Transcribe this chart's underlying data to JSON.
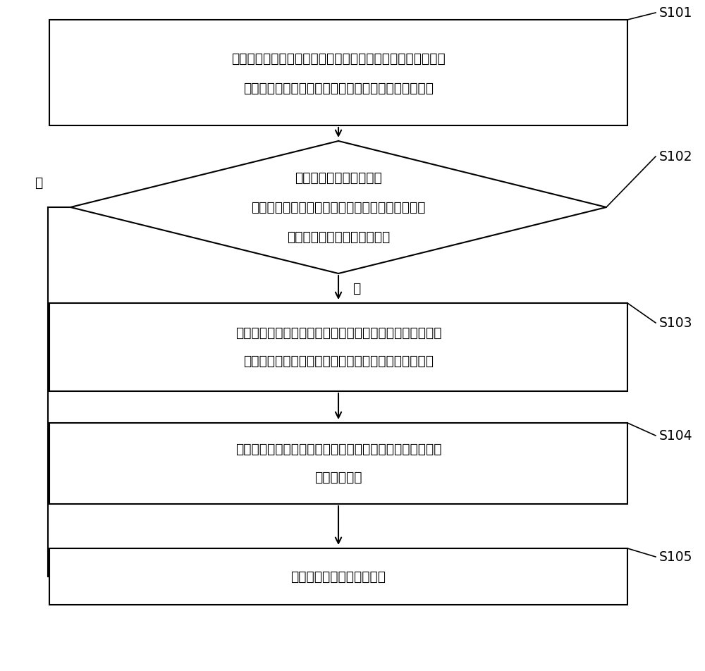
{
  "bg_color": "#ffffff",
  "line_color": "#000000",
  "text_color": "#000000",
  "font_size": 13.5,
  "step_labels": [
    "S101",
    "S102",
    "S103",
    "S104",
    "S105"
  ],
  "box1_line1": "采集特定时间内变电站用电设备的用电负荷数据，并基于所述",
  "box1_line2": "用电负荷数据获取用电系统中用电占比最大的空调系统",
  "diamond_line1": "基于所述空调系统为室内",
  "diamond_line2": "所分配的空调设备，通过红外人体探测器判断所述",
  "diamond_line3": "空调设备是否处于可运行状态",
  "box3_line1": "基于所述红外人体探测器对室内工作人员的人体参数进行采",
  "box3_line2": "集，同时基于温湿度测试仪对室内的环境参数进行监测",
  "box4_line1": "通过所述环境参数和所述人体参数，对所述空调设备的运行",
  "box4_line2": "参数进行调整",
  "box5_text": "控制所述空调设备停止工作",
  "yes_label": "是",
  "no_label": "否"
}
